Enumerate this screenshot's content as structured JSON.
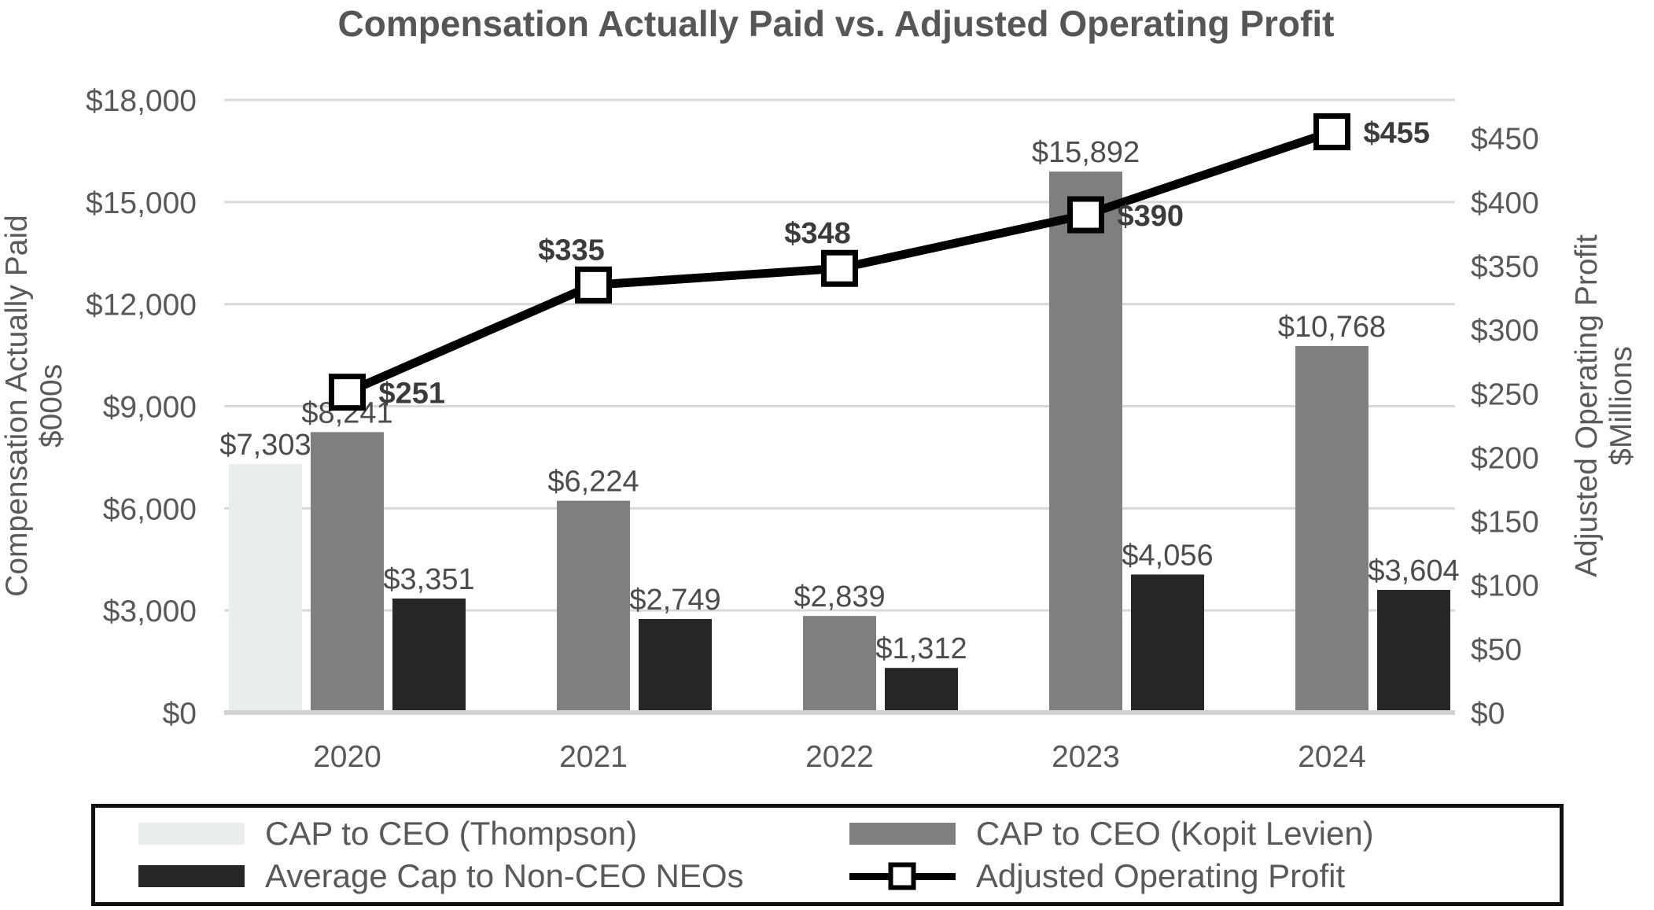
{
  "chart_data": {
    "type": "combo-bar-line",
    "title": "Compensation Actually Paid vs. Adjusted Operating Profit",
    "categories": [
      "2020",
      "2021",
      "2022",
      "2023",
      "2024"
    ],
    "grid": true,
    "legend_position": "bottom-boxed",
    "left_axis": {
      "title": "Compensation Actually Paid",
      "subtitle": "$000s",
      "min": 0,
      "max": 18000,
      "step": 3000,
      "tick_labels": [
        "$0",
        "$3,000",
        "$6,000",
        "$9,000",
        "$12,000",
        "$15,000",
        "$18,000"
      ]
    },
    "right_axis": {
      "title": "Adjusted Operating Profit",
      "subtitle": "$Millions",
      "min": 0,
      "max": 480,
      "tick_step": 50,
      "tick_max": 450,
      "tick_labels": [
        "$0",
        "$50",
        "$100",
        "$150",
        "$200",
        "$250",
        "$300",
        "$350",
        "$400",
        "$450"
      ]
    },
    "series": [
      {
        "name": "CAP to CEO (Thompson)",
        "type": "bar",
        "color": "#e9edeb",
        "values": [
          7303,
          null,
          null,
          null,
          null
        ],
        "data_labels": [
          "$7,303",
          "",
          "",
          "",
          ""
        ]
      },
      {
        "name": "CAP to CEO (Kopit Levien)",
        "type": "bar",
        "color": "#7f7f7f",
        "values": [
          8241,
          6224,
          2839,
          15892,
          10768
        ],
        "data_labels": [
          "$8,241",
          "$6,224",
          "$2,839",
          "$15,892",
          "$10,768"
        ]
      },
      {
        "name": "Average Cap to Non-CEO NEOs",
        "type": "bar",
        "color": "#262626",
        "values": [
          3351,
          2749,
          1312,
          4056,
          3604
        ],
        "data_labels": [
          "$3,351",
          "$2,749",
          "$1,312",
          "$4,056",
          "$3,604"
        ]
      },
      {
        "name": "Adjusted Operating Profit",
        "type": "line",
        "axis": "right",
        "color": "#000000",
        "marker": "white-square",
        "values": [
          251,
          335,
          348,
          390,
          455
        ],
        "data_labels": [
          "$251",
          "$335",
          "$348",
          "$390",
          "$455"
        ],
        "label_side": [
          "right",
          "above",
          "above",
          "right",
          "right"
        ]
      }
    ]
  }
}
